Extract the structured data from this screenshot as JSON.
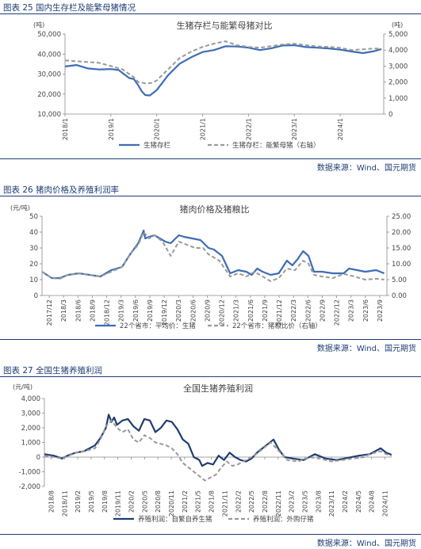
{
  "figures": [
    {
      "caption": "图表 25 国内生存栏及能繁母猪情况",
      "source": "数据来源：Wind、国元期货"
    },
    {
      "caption": "图表 26 猪肉价格及养殖利润率",
      "source": "数据来源：Wind、国元期货"
    },
    {
      "caption": "图表 27 全国生猪养殖利润",
      "source": "数据来源：Wind、国元期货"
    }
  ],
  "colors": {
    "primary": "#3e6db5",
    "secondary": "#999999",
    "navy": "#1f3d73",
    "profit_primary": "#1f3d73"
  },
  "chart_data": [
    {
      "type": "line",
      "title": "生猪存栏与能繁母猪对比",
      "left_unit": "(吨)",
      "right_unit": "(吨)",
      "ylim": [
        10000,
        50000
      ],
      "y2lim": [
        0,
        5000
      ],
      "y_ticks": [
        "10,000",
        "20,000",
        "30,000",
        "40,000",
        "50,000"
      ],
      "y2_ticks": [
        "0",
        "1,000",
        "2,000",
        "3,000",
        "4,000",
        "5,000"
      ],
      "x_ticks": [
        "2018/1",
        "2019/1",
        "2020/1",
        "2021/1",
        "2022/1",
        "2023/1",
        "2024/1"
      ],
      "xlim": [
        2018.0,
        2024.95
      ],
      "series": [
        {
          "name": "生猪存栏",
          "axis": "left",
          "style": "solid",
          "x": [
            2018.0,
            2018.25,
            2018.5,
            2018.75,
            2019.0,
            2019.17,
            2019.25,
            2019.4,
            2019.5,
            2019.6,
            2019.67,
            2019.75,
            2019.85,
            2020.0,
            2020.25,
            2020.5,
            2020.75,
            2021.0,
            2021.25,
            2021.5,
            2021.75,
            2022.0,
            2022.25,
            2022.5,
            2022.75,
            2023.0,
            2023.25,
            2023.5,
            2023.75,
            2024.0,
            2024.25,
            2024.5,
            2024.75,
            2024.9
          ],
          "y": [
            33800,
            34500,
            32800,
            32300,
            32500,
            32000,
            30600,
            28000,
            27500,
            24300,
            21500,
            19500,
            19300,
            22000,
            29500,
            35200,
            38400,
            41000,
            42000,
            43900,
            43800,
            43200,
            42000,
            42900,
            44300,
            44400,
            43500,
            43200,
            42800,
            42200,
            41300,
            40500,
            41500,
            42500
          ]
        },
        {
          "name": "生猪存栏：能繁母猪（右轴）",
          "axis": "right",
          "style": "dashed",
          "x": [
            2018.0,
            2018.25,
            2018.5,
            2018.75,
            2019.0,
            2019.25,
            2019.4,
            2019.5,
            2019.6,
            2019.75,
            2019.9,
            2020.0,
            2020.25,
            2020.5,
            2020.75,
            2021.0,
            2021.25,
            2021.5,
            2021.75,
            2022.0,
            2022.25,
            2022.5,
            2022.75,
            2023.0,
            2023.25,
            2023.5,
            2023.75,
            2024.0,
            2024.25,
            2024.5,
            2024.75,
            2024.9
          ],
          "y": [
            3350,
            3300,
            3250,
            3200,
            3000,
            2800,
            2500,
            2300,
            2000,
            1920,
            1950,
            2100,
            2800,
            3500,
            3900,
            4200,
            4400,
            4550,
            4300,
            4200,
            4150,
            4250,
            4350,
            4390,
            4300,
            4230,
            4200,
            4140,
            4000,
            4050,
            4100,
            4080
          ]
        }
      ],
      "legend_placement": "bottom"
    },
    {
      "type": "line",
      "title": "猪肉价格及猪粮比",
      "left_unit": "(元/吨)",
      "ylim": [
        0,
        50
      ],
      "y2lim": [
        0,
        25
      ],
      "y_ticks": [
        "0",
        "10",
        "20",
        "30",
        "40",
        "50"
      ],
      "y2_ticks": [
        "0.00",
        "5.00",
        "10.00",
        "15.00",
        "20.00",
        "25.00"
      ],
      "x_ticks": [
        "2017/12",
        "2018/3",
        "2018/6",
        "2018/9",
        "2018/12",
        "2019/3",
        "2019/6",
        "2019/9",
        "2019/12",
        "2020/3",
        "2020/6",
        "2020/9",
        "2020/12",
        "2021/3",
        "2021/6",
        "2021/9",
        "2021/12",
        "2022/3",
        "2022/6",
        "2022/9",
        "2022/12",
        "2023/3",
        "2023/6",
        "2023/9"
      ],
      "xlim": [
        2017.92,
        2024.3
      ],
      "series": [
        {
          "name": "22个省市：平均价：生猪",
          "axis": "left",
          "style": "solid",
          "x": [
            2017.92,
            2018.1,
            2018.25,
            2018.4,
            2018.6,
            2018.8,
            2019.0,
            2019.2,
            2019.4,
            2019.55,
            2019.7,
            2019.8,
            2019.83,
            2019.9,
            2020.0,
            2020.1,
            2020.2,
            2020.3,
            2020.45,
            2020.55,
            2020.7,
            2020.85,
            2021.0,
            2021.1,
            2021.25,
            2021.4,
            2021.55,
            2021.7,
            2021.8,
            2021.9,
            2022.0,
            2022.15,
            2022.3,
            2022.45,
            2022.55,
            2022.65,
            2022.75,
            2022.85,
            2022.95,
            2023.1,
            2023.3,
            2023.5,
            2023.6,
            2023.75,
            2023.9,
            2024.1,
            2024.25
          ],
          "y": [
            15,
            11,
            11,
            13,
            14,
            13,
            12,
            16,
            18,
            26,
            33,
            41,
            36,
            37,
            38,
            36,
            34,
            33,
            38,
            37,
            36,
            35,
            30,
            29,
            25,
            14,
            16,
            15,
            13,
            17,
            15,
            13,
            14,
            22,
            19,
            23,
            28,
            25,
            15,
            15,
            14,
            14,
            17,
            16,
            15,
            16,
            14
          ]
        },
        {
          "name": "22个省市：猪粮比价（右轴）",
          "axis": "right",
          "style": "dashed",
          "x": [
            2017.92,
            2018.1,
            2018.25,
            2018.4,
            2018.6,
            2018.8,
            2019.0,
            2019.2,
            2019.4,
            2019.55,
            2019.7,
            2019.8,
            2019.9,
            2020.0,
            2020.15,
            2020.3,
            2020.45,
            2020.6,
            2020.75,
            2020.9,
            2021.0,
            2021.2,
            2021.4,
            2021.55,
            2021.7,
            2021.85,
            2022.0,
            2022.15,
            2022.3,
            2022.45,
            2022.6,
            2022.75,
            2022.85,
            2022.95,
            2023.1,
            2023.3,
            2023.5,
            2023.7,
            2023.9,
            2024.1,
            2024.25
          ],
          "y": [
            7.5,
            5.5,
            5.3,
            6.5,
            7,
            6.5,
            6,
            7.5,
            9,
            13,
            16,
            20,
            18,
            19,
            17,
            12.5,
            17,
            16,
            15,
            15,
            13,
            11,
            6,
            7,
            6,
            7.5,
            6,
            4.5,
            5.5,
            8.5,
            8,
            11,
            10,
            6.5,
            6,
            5.5,
            6.8,
            6,
            5,
            5.3,
            5
          ]
        }
      ],
      "legend_placement": "bottom"
    },
    {
      "type": "line",
      "title": "全国生猪养殖利润",
      "left_unit": "(元/吨)",
      "ylim": [
        -2000,
        4000
      ],
      "y_ticks": [
        "-2,000",
        "-1,000",
        "0",
        "1,000",
        "2,000",
        "3,000",
        "4,000"
      ],
      "x_ticks": [
        "2018/8",
        "2018/11",
        "2019/2",
        "2019/5",
        "2019/8",
        "2019/11",
        "2020/2",
        "2020/5",
        "2020/8",
        "2020/11",
        "2021/2",
        "2021/5",
        "2021/8",
        "2021/11",
        "2022/2",
        "2022/5",
        "2022/8",
        "2022/11",
        "2023/2",
        "2023/5",
        "2023/8",
        "2023/11",
        "2024/2",
        "2024/5",
        "2024/8",
        "2024/11"
      ],
      "xlim": [
        2018.58,
        2024.9
      ],
      "series": [
        {
          "name": "养殖利润：自繁自养生猪",
          "axis": "left",
          "style": "solid",
          "x": [
            2018.58,
            2018.75,
            2018.9,
            2019.0,
            2019.15,
            2019.3,
            2019.5,
            2019.6,
            2019.7,
            2019.75,
            2019.8,
            2019.85,
            2019.9,
            2020.0,
            2020.1,
            2020.2,
            2020.3,
            2020.4,
            2020.5,
            2020.6,
            2020.7,
            2020.8,
            2020.9,
            2021.0,
            2021.1,
            2021.2,
            2021.3,
            2021.4,
            2021.45,
            2021.55,
            2021.65,
            2021.75,
            2021.85,
            2021.95,
            2022.05,
            2022.15,
            2022.25,
            2022.35,
            2022.45,
            2022.55,
            2022.65,
            2022.75,
            2022.85,
            2022.95,
            2023.1,
            2023.3,
            2023.5,
            2023.7,
            2023.9,
            2024.1,
            2024.3,
            2024.5,
            2024.6,
            2024.7,
            2024.8,
            2024.9
          ],
          "y": [
            200,
            100,
            -100,
            100,
            300,
            400,
            800,
            1300,
            2000,
            2900,
            2400,
            2700,
            2200,
            2500,
            2600,
            2100,
            1800,
            2600,
            2500,
            1700,
            2000,
            2500,
            2400,
            1900,
            1200,
            900,
            0,
            -200,
            -600,
            -400,
            -500,
            100,
            -200,
            300,
            0,
            -200,
            -300,
            -100,
            300,
            600,
            900,
            1200,
            500,
            0,
            -100,
            -200,
            200,
            -100,
            -200,
            -50,
            100,
            200,
            400,
            600,
            300,
            150
          ]
        },
        {
          "name": "养殖利润：外购仔猪",
          "axis": "left",
          "style": "dashed",
          "x": [
            2018.58,
            2018.75,
            2018.9,
            2019.0,
            2019.15,
            2019.3,
            2019.5,
            2019.6,
            2019.7,
            2019.8,
            2019.9,
            2020.0,
            2020.1,
            2020.2,
            2020.3,
            2020.4,
            2020.5,
            2020.6,
            2020.7,
            2020.8,
            2020.9,
            2021.0,
            2021.1,
            2021.2,
            2021.3,
            2021.4,
            2021.5,
            2021.6,
            2021.7,
            2021.8,
            2021.9,
            2022.0,
            2022.1,
            2022.2,
            2022.3,
            2022.4,
            2022.5,
            2022.6,
            2022.7,
            2022.8,
            2022.9,
            2023.0,
            2023.2,
            2023.4,
            2023.6,
            2023.8,
            2024.0,
            2024.2,
            2024.4,
            2024.5,
            2024.6,
            2024.7,
            2024.8,
            2024.9
          ],
          "y": [
            100,
            0,
            -100,
            50,
            300,
            400,
            600,
            1200,
            2100,
            2500,
            2000,
            1700,
            1900,
            1200,
            1000,
            1500,
            1300,
            1000,
            900,
            800,
            600,
            200,
            -400,
            -700,
            -1000,
            -1300,
            -1600,
            -1400,
            -1200,
            -700,
            -300,
            -600,
            -500,
            -300,
            -100,
            100,
            400,
            700,
            1000,
            600,
            200,
            -200,
            -300,
            0,
            -100,
            -300,
            -200,
            -100,
            0,
            200,
            300,
            400,
            200,
            100
          ]
        }
      ],
      "legend_placement": "bottom"
    }
  ]
}
